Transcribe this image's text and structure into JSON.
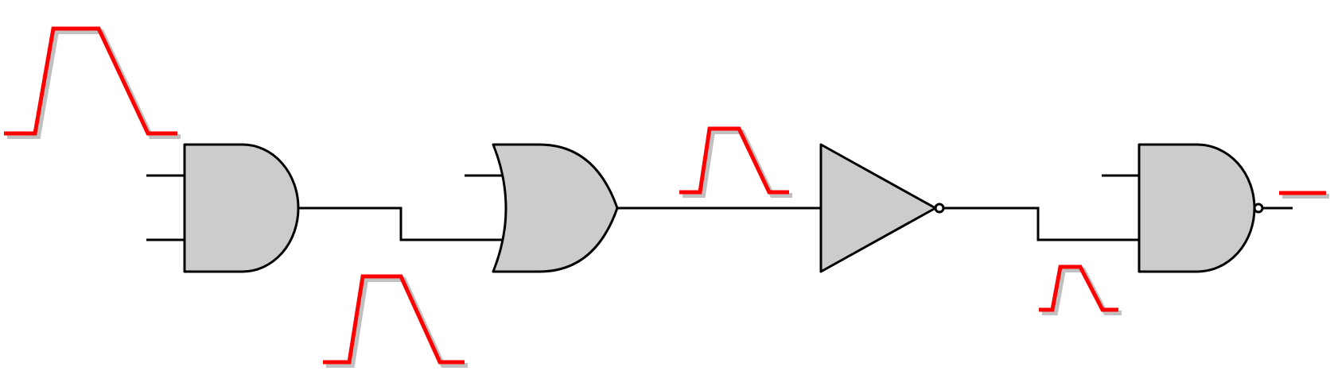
{
  "colors": {
    "background": "#ffffff",
    "gate_fill": "#cccccc",
    "line": "#000000",
    "pulse": "#ff0000",
    "pulse_shadow": "#c0c0c0"
  },
  "gates": [
    {
      "type": "AND",
      "inputs": 2,
      "output_inverted": false
    },
    {
      "type": "OR",
      "inputs": 2,
      "output_inverted": false
    },
    {
      "type": "NOT",
      "inputs": 1,
      "output_inverted": true
    },
    {
      "type": "NAND",
      "inputs": 2,
      "output_inverted": true
    }
  ],
  "signals": [
    {
      "at": "input",
      "waveform": "pulse"
    },
    {
      "at": "and-output",
      "waveform": "pulse"
    },
    {
      "at": "or-output",
      "waveform": "pulse"
    },
    {
      "at": "not-output",
      "waveform": "pulse"
    },
    {
      "at": "nand-output",
      "waveform": "flat"
    }
  ]
}
